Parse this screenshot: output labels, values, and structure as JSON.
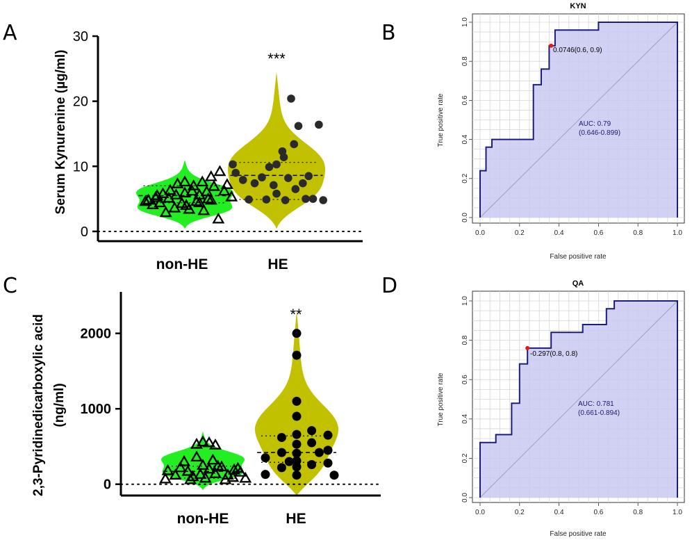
{
  "panels": {
    "a": "A",
    "b": "B",
    "c": "C",
    "d": "D"
  },
  "chart_data": [
    {
      "id": "A",
      "type": "violin",
      "ylabel": "Serum Kynurenine  (µg/ml)",
      "ylim": [
        -1.5,
        30
      ],
      "yticks": [
        "0",
        "10",
        "20",
        "30"
      ],
      "ytick_values": [
        0,
        10,
        20,
        30
      ],
      "categories": [
        "non-HE",
        "HE"
      ],
      "significance": "***",
      "groups": [
        {
          "name": "non-HE",
          "color": "#22ee22",
          "marker": "triangle",
          "range": [
            0.4,
            11
          ],
          "median": 5.5,
          "quartiles": [
            4.4,
            7.0
          ],
          "points": [
            [
              -0.27,
              4.6
            ],
            [
              -0.2,
              5.2
            ],
            [
              -0.15,
              5.8
            ],
            [
              -0.1,
              6.3
            ],
            [
              -0.05,
              7.3
            ],
            [
              0.0,
              7.6
            ],
            [
              0.06,
              7.0
            ],
            [
              0.12,
              7.6
            ],
            [
              0.18,
              8.4
            ],
            [
              0.24,
              9.2
            ],
            [
              -0.22,
              4.1
            ],
            [
              -0.17,
              4.4
            ],
            [
              -0.11,
              5.1
            ],
            [
              -0.06,
              5.6
            ],
            [
              0.0,
              5.9
            ],
            [
              0.05,
              6.2
            ],
            [
              0.1,
              5.6
            ],
            [
              0.15,
              6.1
            ],
            [
              0.2,
              6.9
            ],
            [
              0.27,
              6.2
            ],
            [
              -0.13,
              2.9
            ],
            [
              -0.07,
              3.6
            ],
            [
              -0.02,
              4.3
            ],
            [
              0.03,
              3.4
            ],
            [
              0.08,
              4.6
            ],
            [
              0.13,
              3.2
            ],
            [
              0.18,
              4.8
            ],
            [
              0.23,
              1.9
            ],
            [
              0.29,
              7.2
            ],
            [
              0.32,
              5.3
            ],
            [
              -0.25,
              4.8
            ],
            [
              -0.19,
              5.5
            ],
            [
              0.01,
              4.0
            ],
            [
              0.1,
              4.4
            ],
            [
              0.16,
              5.0
            ]
          ]
        },
        {
          "name": "HE",
          "color": "#c2c100",
          "marker": "circle",
          "range": [
            0.4,
            24.5
          ],
          "median": 8.6,
          "quartiles": [
            4.9,
            10.6
          ],
          "points": [
            [
              -0.3,
              10.3
            ],
            [
              -0.28,
              9.0
            ],
            [
              -0.23,
              7.9
            ],
            [
              -0.19,
              4.9
            ],
            [
              -0.15,
              7.4
            ],
            [
              -0.1,
              8.3
            ],
            [
              -0.05,
              9.9
            ],
            [
              0.0,
              5.8
            ],
            [
              0.0,
              10.3
            ],
            [
              0.05,
              11.4
            ],
            [
              0.06,
              4.8
            ],
            [
              0.08,
              8.2
            ],
            [
              0.1,
              20.4
            ],
            [
              0.12,
              13.4
            ],
            [
              0.15,
              16.2
            ],
            [
              0.18,
              7.4
            ],
            [
              0.22,
              8.5
            ],
            [
              0.25,
              5.0
            ],
            [
              0.29,
              16.4
            ],
            [
              0.32,
              4.8
            ],
            [
              -0.07,
              4.9
            ],
            [
              -0.02,
              7.1
            ],
            [
              0.04,
              12.3
            ],
            [
              0.13,
              6.5
            ],
            [
              0.2,
              5.0
            ]
          ]
        }
      ]
    },
    {
      "id": "C",
      "type": "violin",
      "ylabel_line1": "2,3-Pyridinedicarboxylic acid",
      "ylabel_line2": "(ng/ml)",
      "ylim": [
        -150,
        2550
      ],
      "yticks": [
        "0",
        "1000",
        "2000"
      ],
      "ytick_values": [
        0,
        1000,
        2000
      ],
      "categories": [
        "non-HE",
        "HE"
      ],
      "significance": "**",
      "groups": [
        {
          "name": "non-HE",
          "color": "#22ee22",
          "marker": "triangle",
          "range": [
            -80,
            700
          ],
          "median": 170,
          "quartiles": [
            80,
            240
          ],
          "points": [
            [
              -0.3,
              70
            ],
            [
              -0.28,
              180
            ],
            [
              -0.22,
              120
            ],
            [
              -0.18,
              220
            ],
            [
              -0.12,
              170
            ],
            [
              -0.08,
              100
            ],
            [
              -0.05,
              530
            ],
            [
              0.0,
              560
            ],
            [
              0.05,
              550
            ],
            [
              0.1,
              520
            ],
            [
              -0.15,
              300
            ],
            [
              -0.05,
              360
            ],
            [
              0.0,
              250
            ],
            [
              0.05,
              200
            ],
            [
              0.1,
              140
            ],
            [
              0.15,
              230
            ],
            [
              0.2,
              120
            ],
            [
              0.25,
              190
            ],
            [
              0.3,
              160
            ],
            [
              0.34,
              80
            ],
            [
              -0.1,
              60
            ],
            [
              0.02,
              80
            ],
            [
              0.12,
              240
            ],
            [
              0.18,
              60
            ],
            [
              0.24,
              90
            ],
            [
              0.28,
              210
            ],
            [
              -0.02,
              130
            ],
            [
              0.08,
              320
            ]
          ]
        },
        {
          "name": "HE",
          "color": "#c2c100",
          "marker": "circle",
          "range": [
            -150,
            2300
          ],
          "median": 420,
          "quartiles": [
            290,
            640
          ],
          "points": [
            [
              0.0,
              2000
            ],
            [
              0.0,
              1710
            ],
            [
              0.0,
              1100
            ],
            [
              0.0,
              900
            ],
            [
              0.0,
              660
            ],
            [
              0.0,
              530
            ],
            [
              0.0,
              410
            ],
            [
              0.0,
              310
            ],
            [
              0.0,
              230
            ],
            [
              0.0,
              120
            ],
            [
              -0.12,
              620
            ],
            [
              -0.12,
              420
            ],
            [
              -0.12,
              220
            ],
            [
              -0.25,
              350
            ],
            [
              -0.25,
              130
            ],
            [
              0.12,
              710
            ],
            [
              0.12,
              550
            ],
            [
              0.12,
              260
            ],
            [
              0.25,
              650
            ],
            [
              0.25,
              450
            ],
            [
              0.25,
              280
            ],
            [
              0.3,
              120
            ],
            [
              0.18,
              420
            ],
            [
              -0.06,
              300
            ]
          ]
        }
      ]
    },
    {
      "id": "B",
      "type": "line",
      "title": "KYN",
      "xlabel": "False positive rate",
      "ylabel": "True positive rate",
      "xticks": [
        "0.0",
        "0.2",
        "0.4",
        "0.6",
        "0.8",
        "1.0"
      ],
      "yticks": [
        "0.0",
        "0.2",
        "0.4",
        "0.6",
        "0.8",
        "1.0"
      ],
      "roc": [
        [
          0,
          0
        ],
        [
          0,
          0.24
        ],
        [
          0.03,
          0.24
        ],
        [
          0.03,
          0.36
        ],
        [
          0.06,
          0.36
        ],
        [
          0.06,
          0.4
        ],
        [
          0.27,
          0.4
        ],
        [
          0.27,
          0.68
        ],
        [
          0.31,
          0.68
        ],
        [
          0.31,
          0.76
        ],
        [
          0.35,
          0.76
        ],
        [
          0.35,
          0.88
        ],
        [
          0.38,
          0.88
        ],
        [
          0.38,
          0.96
        ],
        [
          0.6,
          0.96
        ],
        [
          0.6,
          1.0
        ],
        [
          1.0,
          1.0
        ],
        [
          1.0,
          0
        ]
      ],
      "cutoff_point": [
        0.36,
        0.88
      ],
      "cutoff_label": "0.0746(0.6, 0.9)",
      "auc": "AUC: 0.79",
      "ci": "(0.646-0.899)"
    },
    {
      "id": "D",
      "type": "line",
      "title": "QA",
      "xlabel": "False positive rate",
      "ylabel": "True positive rate",
      "xticks": [
        "0.0",
        "0.2",
        "0.4",
        "0.6",
        "0.8",
        "1.0"
      ],
      "yticks": [
        "0.0",
        "0.2",
        "0.4",
        "0.6",
        "0.8",
        "1.0"
      ],
      "roc": [
        [
          0,
          0
        ],
        [
          0,
          0.28
        ],
        [
          0.08,
          0.28
        ],
        [
          0.08,
          0.32
        ],
        [
          0.16,
          0.32
        ],
        [
          0.16,
          0.48
        ],
        [
          0.2,
          0.48
        ],
        [
          0.2,
          0.68
        ],
        [
          0.24,
          0.68
        ],
        [
          0.24,
          0.76
        ],
        [
          0.36,
          0.76
        ],
        [
          0.36,
          0.84
        ],
        [
          0.52,
          0.84
        ],
        [
          0.52,
          0.88
        ],
        [
          0.64,
          0.88
        ],
        [
          0.64,
          0.96
        ],
        [
          0.68,
          0.96
        ],
        [
          0.68,
          1.0
        ],
        [
          1.0,
          1.0
        ],
        [
          1.0,
          0
        ]
      ],
      "cutoff_point": [
        0.24,
        0.76
      ],
      "cutoff_label": "-0.297(0.8, 0.8)",
      "auc": "AUC: 0.781",
      "ci": "(0.661-0.894)"
    }
  ]
}
